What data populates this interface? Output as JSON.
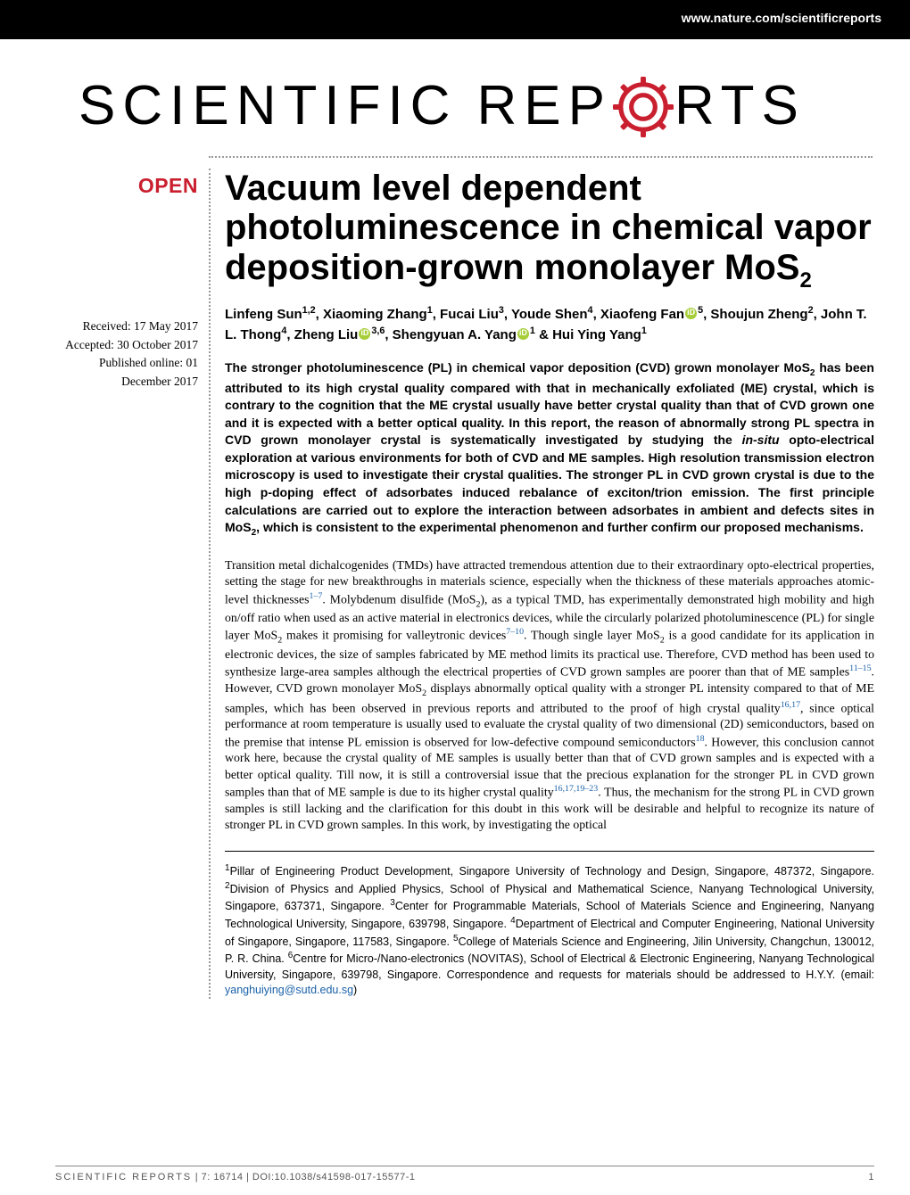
{
  "site_url": "www.nature.com/scientificreports",
  "journal_logo": {
    "part1": "SCIENTIFIC",
    "part2a": "REP",
    "part2b": "RTS"
  },
  "open_label": "OPEN",
  "dates": {
    "received": "Received: 17 May 2017",
    "accepted": "Accepted: 30 October 2017",
    "published": "Published online: 01 December 2017"
  },
  "title_html": "Vacuum level dependent photoluminescence in chemical vapor deposition-grown monolayer MoS<sub>2</sub>",
  "authors_html": "Linfeng Sun<sup>1,2</sup>, Xiaoming Zhang<sup>1</sup>, Fucai Liu<sup>3</sup>, Youde Shen<sup>4</sup>, Xiaofeng Fan<span class='orcid' data-name='orcid-icon' data-interactable='false'></span><sup>5</sup>, Shoujun Zheng<sup>2</sup>, John T. L. Thong<sup>4</sup>, Zheng Liu<span class='orcid' data-name='orcid-icon' data-interactable='false'></span><sup>3,6</sup>, Shengyuan A. Yang<span class='orcid' data-name='orcid-icon' data-interactable='false'></span><sup>1</sup> & Hui Ying Yang<sup>1</sup>",
  "abstract_html": "The stronger photoluminescence (PL) in chemical vapor deposition (CVD) grown monolayer MoS<sub>2</sub> has been attributed to its high crystal quality compared with that in mechanically exfoliated (ME) crystal, which is contrary to the cognition that the ME crystal usually have better crystal quality than that of CVD grown one and it is expected with a better optical quality. In this report, the reason of abnormally strong PL spectra in CVD grown monolayer crystal is systematically investigated by studying the <i>in-situ</i> opto-electrical exploration at various environments for both of CVD and ME samples. High resolution transmission electron microscopy is used to investigate their crystal qualities. The stronger PL in CVD grown crystal is due to the high p-doping effect of adsorbates induced rebalance of exciton/trion emission. The first principle calculations are carried out to explore the interaction between adsorbates in ambient and defects sites in MoS<sub>2</sub>, which is consistent to the experimental phenomenon and further confirm our proposed mechanisms.",
  "body_html": "Transition metal dichalcogenides (TMDs) have attracted tremendous attention due to their extraordinary opto-electrical properties, setting the stage for new breakthroughs in materials science, especially when the thickness of these materials approaches atomic-level thicknesses<sup class='ref'>1–7</sup>. Molybdenum disulfide (MoS<sub>2</sub>), as a typical TMD, has experimentally demonstrated high mobility and high on/off ratio when used as an active material in electronics devices, while the circularly polarized photoluminescence (PL) for single layer MoS<sub>2</sub> makes it promising for valleytronic devices<sup class='ref'>7–10</sup>. Though single layer MoS<sub>2</sub> is a good candidate for its application in electronic devices, the size of samples fabricated by ME method limits its practical use. Therefore, CVD method has been used to synthesize large-area samples although the electrical properties of CVD grown samples are poorer than that of ME samples<sup class='ref'>11–15</sup>. However, CVD grown monolayer MoS<sub>2</sub> displays abnormally optical quality with a stronger PL intensity compared to that of ME samples, which has been observed in previous reports and attributed to the proof of high crystal quality<sup class='ref'>16,17</sup>, since optical performance at room temperature is usually used to evaluate the crystal quality of two dimensional (2D) semiconductors, based on the premise that intense PL emission is observed for low-defective compound semiconductors<sup class='ref'>18</sup>. However, this conclusion cannot work here, because the crystal quality of ME samples is usually better than that of CVD grown samples and is expected with a better optical quality. Till now, it is still a controversial issue that the precious explanation for the stronger PL in CVD grown samples than that of ME sample is due to its higher crystal quality<sup class='ref'>16,17,19–23</sup>. Thus, the mechanism for the strong PL in CVD grown samples is still lacking and the clarification for this doubt in this work will be desirable and helpful to recognize its nature of stronger PL in CVD grown samples. In this work, by investigating the optical",
  "affiliations_html": "<sup>1</sup>Pillar of Engineering Product Development, Singapore University of Technology and Design, Singapore, 487372, Singapore. <sup>2</sup>Division of Physics and Applied Physics, School of Physical and Mathematical Science, Nanyang Technological University, Singapore, 637371, Singapore. <sup>3</sup>Center for Programmable Materials, School of Materials Science and Engineering, Nanyang Technological University, Singapore, 639798, Singapore. <sup>4</sup>Department of Electrical and Computer Engineering, National University of Singapore, Singapore, 117583, Singapore. <sup>5</sup>College of Materials Science and Engineering, Jilin University, Changchun, 130012, P. R. China. <sup>6</sup>Centre for Micro-/Nano-electronics (NOVITAS), School of Electrical & Electronic Engineering, Nanyang Technological University, Singapore, 639798, Singapore. Correspondence and requests for materials should be addressed to H.Y.Y. (email: <a data-name='corresponding-email-link' data-interactable='true'>yanghuiying@sutd.edu.sg</a>)",
  "footer": {
    "journal": "SCIENTIFIC REPORTS",
    "citation": " | 7: 16714  | DOI:10.1038/s41598-017-15577-1",
    "page": "1"
  },
  "colors": {
    "accent_red": "#c91f2f",
    "link_blue": "#1a61a9",
    "orcid_green": "#a6ce39",
    "topbar_bg": "#000000"
  }
}
